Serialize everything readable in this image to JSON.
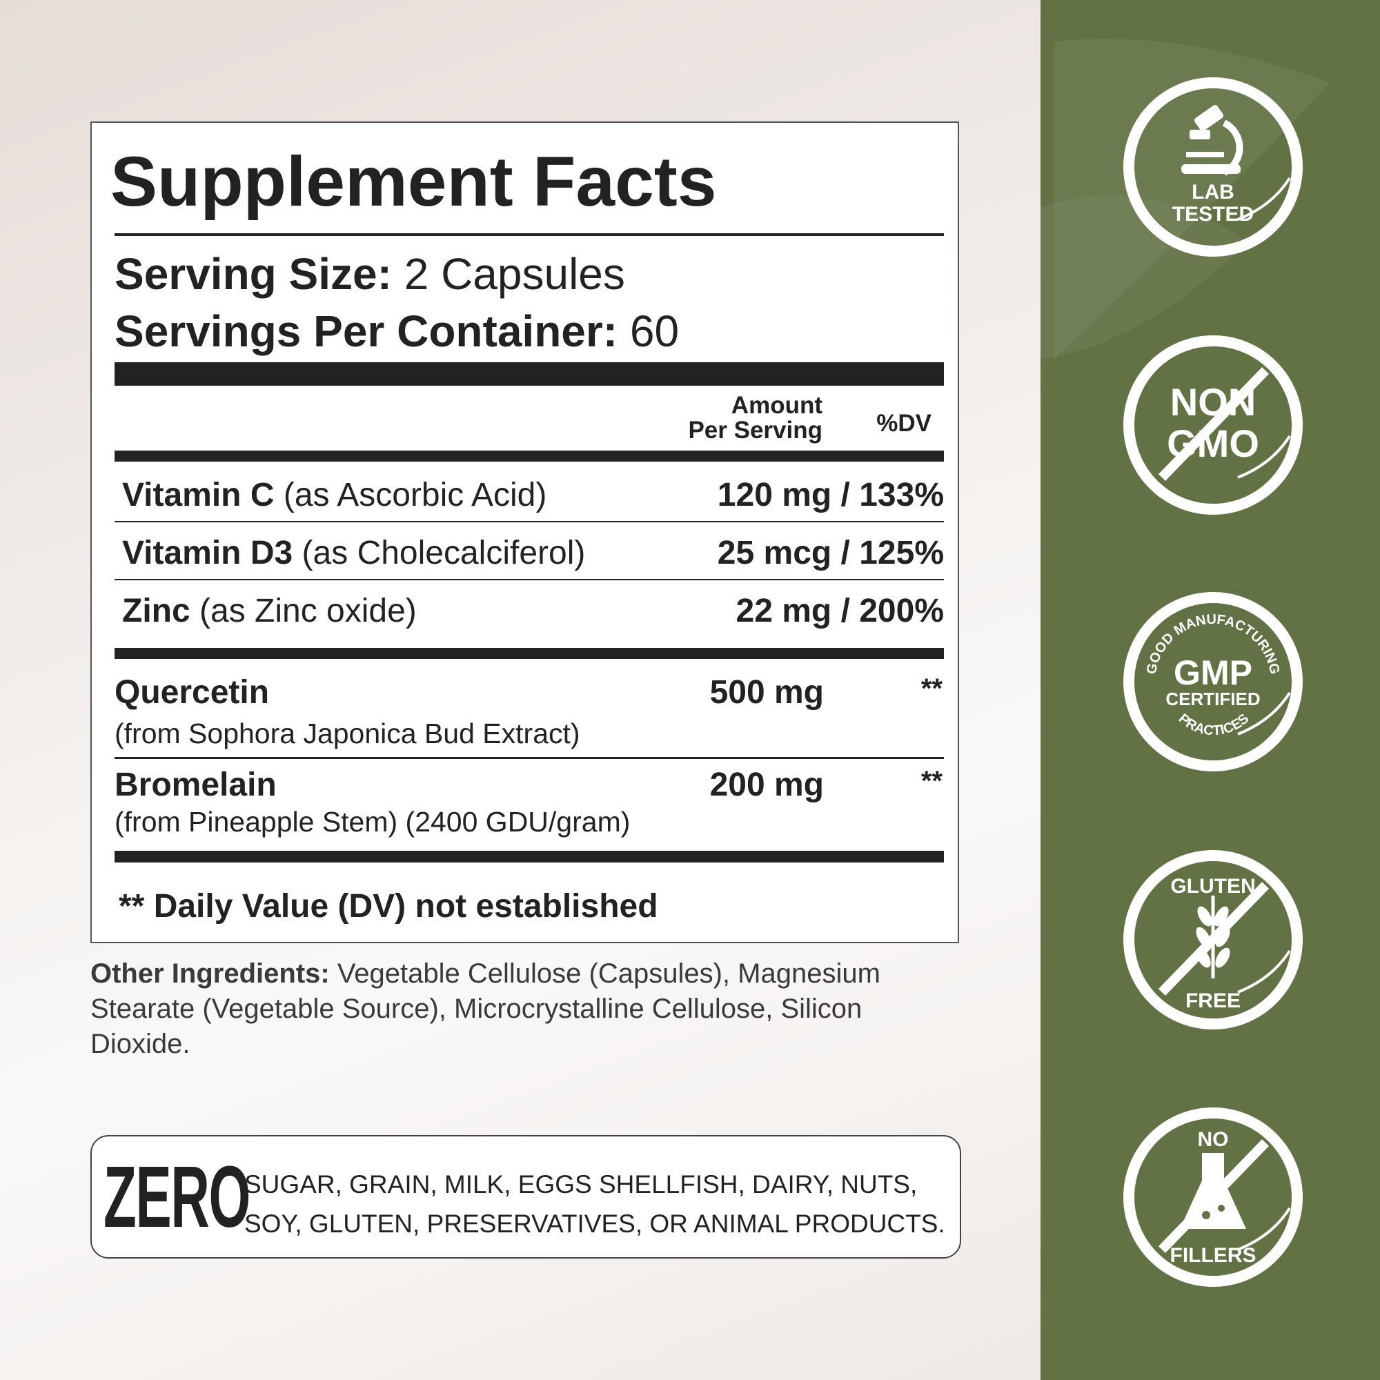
{
  "facts": {
    "title": "Supplement Facts",
    "serving_size_label": "Serving Size:",
    "serving_size_value": "2 Capsules",
    "servings_label": "Servings Per Container:",
    "servings_value": "60",
    "col_amount_1": "Amount",
    "col_amount_2": "Per Serving",
    "col_dv": "%DV",
    "rows": [
      {
        "name": "Vitamin C",
        "source": "(as Ascorbic Acid)",
        "amount": "120 mg / 133%"
      },
      {
        "name": "Vitamin D3",
        "source": "(as Cholecalciferol)",
        "amount": "25 mcg / 125%"
      },
      {
        "name": "Zinc",
        "source": "(as Zinc oxide)",
        "amount": "22 mg / 200%"
      },
      {
        "name": "Quercetin",
        "source": "(from Sophora Japonica Bud Extract)",
        "amount": "500 mg",
        "dv": "**"
      },
      {
        "name": "Bromelain",
        "source": "(from Pineapple Stem) (2400 GDU/gram)",
        "amount": "200 mg",
        "dv": "**"
      }
    ],
    "footnote": "** Daily Value (DV) not established"
  },
  "other": {
    "label": "Other Ingredients:",
    "lines": [
      " Vegetable Cellulose (Capsules), Magnesium",
      "Stearate (Vegetable Source), Microcrystalline Cellulose, Silicon",
      "Dioxide."
    ]
  },
  "zero": {
    "word": "ZERO",
    "line1": "SUGAR, GRAIN, MILK, EGGS SHELLFISH, DAIRY, NUTS,",
    "line2": "SOY, GLUTEN, PRESERVATIVES, OR ANIMAL PRODUCTS."
  },
  "badges": [
    {
      "icon": "microscope-icon",
      "lines": [
        "LAB",
        "TESTED"
      ]
    },
    {
      "icon": "prohibited-icon",
      "lines": [
        "NON",
        "GMO"
      ]
    },
    {
      "icon": "seal-icon",
      "lines": [
        "GMP",
        "CERTIFIED"
      ],
      "arc_top": "GOOD MANUFACTURING",
      "arc_bottom": "PRACTICES"
    },
    {
      "icon": "wheat-icon",
      "lines": [
        "GLUTEN",
        "FREE"
      ]
    },
    {
      "icon": "flask-icon",
      "lines": [
        "NO",
        "FILLERS"
      ]
    }
  ],
  "colors": {
    "panel": "#627245",
    "ink": "#232323"
  }
}
